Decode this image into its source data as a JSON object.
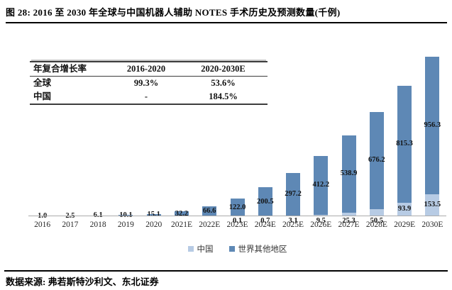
{
  "figure": {
    "title": "图 28: 2016 至 2030 年全球与中国机器人辅助 NOTES 手术历史及预测数量(千例)",
    "source": "数据来源: 弗若斯特沙利文、东北证券"
  },
  "table": {
    "headers": [
      "年复合增长率",
      "2016-2020",
      "2020-2030E"
    ],
    "rows": [
      [
        "全球",
        "99.3%",
        "53.6%"
      ],
      [
        "中国",
        "-",
        "184.5%"
      ]
    ]
  },
  "chart_data": {
    "type": "bar",
    "stacked": true,
    "title": "2016 至 2030 年全球与中国机器人辅助 NOTES 手术历史及预测数量(千例)",
    "categories": [
      "2016",
      "2017",
      "2018",
      "2019",
      "2020",
      "2021E",
      "2022E",
      "2023E",
      "2024E",
      "2025E",
      "2026E",
      "2027E",
      "2028E",
      "2029E",
      "2030E"
    ],
    "series": [
      {
        "name": "中国",
        "color": "#b7cbe4",
        "values": [
          0,
          0,
          0,
          0,
          0,
          0,
          0,
          0.1,
          0.7,
          3.1,
          9.5,
          25.3,
          50.5,
          93.9,
          153.5
        ]
      },
      {
        "name": "世界其他地区",
        "color": "#5e88b5",
        "values": [
          1.0,
          2.5,
          6.1,
          10.1,
          15.1,
          32.2,
          66.6,
          122.0,
          200.5,
          297.2,
          412.2,
          538.9,
          676.2,
          815.3,
          956.3
        ]
      }
    ],
    "xlabel": "",
    "ylabel": "",
    "ylim": [
      0,
      1200
    ],
    "grid": false,
    "legend_position": "bottom",
    "axis_color": "#ababab"
  }
}
